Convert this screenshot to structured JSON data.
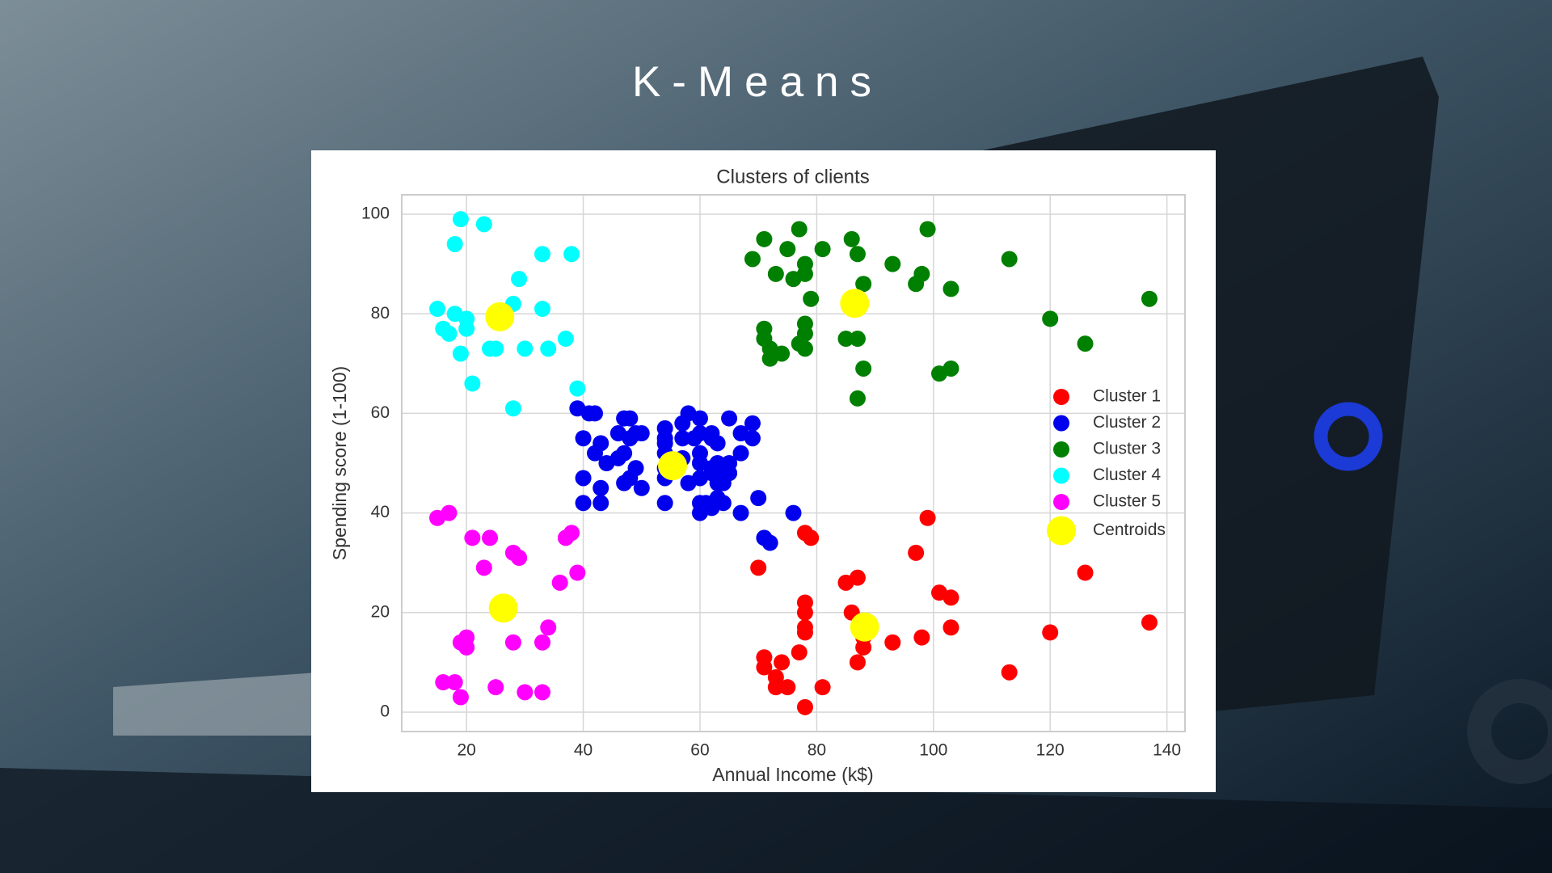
{
  "slide_title": "K-Means",
  "chart_data": {
    "type": "scatter",
    "title": "Clusters of clients",
    "x_label": "Annual Income (k$)",
    "y_label": "Spending score (1-100)",
    "xlim": [
      8.9,
      143.1
    ],
    "ylim": [
      -3.9,
      103.9
    ],
    "xticks": [
      20,
      40,
      60,
      80,
      100,
      120,
      140
    ],
    "yticks": [
      0,
      20,
      40,
      60,
      80,
      100
    ],
    "grid": true,
    "legend": "center right",
    "series": [
      {
        "name": "Cluster 1",
        "color": "#ff0000",
        "x": [
          70,
          78,
          79,
          99,
          97,
          126,
          85,
          87,
          101,
          103,
          137,
          120,
          103,
          98,
          93,
          88,
          87,
          86,
          78,
          78,
          78,
          78,
          77,
          71,
          71,
          73,
          74,
          73,
          75,
          81,
          78,
          113,
          88
        ],
        "values": [
          29,
          36,
          35,
          39,
          32,
          28,
          26,
          27,
          24,
          23,
          18,
          16,
          17,
          15,
          14,
          13,
          10,
          20,
          22,
          20,
          17,
          16,
          12,
          11,
          9,
          7,
          10,
          5,
          5,
          5,
          1,
          8,
          15
        ]
      },
      {
        "name": "Cluster 2",
        "color": "#0000ee",
        "x": [
          39,
          40,
          40,
          40,
          42,
          41,
          42,
          43,
          44,
          43,
          43,
          46,
          46,
          47,
          47,
          47,
          48,
          48,
          48,
          49,
          49,
          50,
          50,
          54,
          54,
          54,
          54,
          54,
          54,
          54,
          57,
          57,
          57,
          58,
          58,
          59,
          60,
          60,
          60,
          60,
          60,
          60,
          60,
          61,
          62,
          62,
          62,
          62,
          62,
          63,
          63,
          63,
          63,
          63,
          64,
          64,
          65,
          65,
          65,
          67,
          67,
          67,
          69,
          69,
          70,
          71,
          72,
          76
        ],
        "values": [
          61,
          55,
          47,
          42,
          60,
          60,
          52,
          54,
          50,
          45,
          42,
          56,
          51,
          59,
          52,
          46,
          47,
          55,
          59,
          56,
          49,
          56,
          45,
          42,
          47,
          49,
          52,
          54,
          55,
          57,
          58,
          55,
          51,
          46,
          60,
          55,
          40,
          42,
          47,
          50,
          52,
          56,
          59,
          42,
          41,
          48,
          49,
          55,
          56,
          43,
          46,
          48,
          50,
          54,
          42,
          46,
          48,
          50,
          59,
          56,
          52,
          40,
          58,
          55,
          43,
          35,
          34,
          40
        ]
      },
      {
        "name": "Cluster 3",
        "color": "#008000",
        "x": [
          69,
          71,
          71,
          71,
          72,
          72,
          73,
          74,
          75,
          76,
          77,
          77,
          78,
          78,
          78,
          78,
          78,
          79,
          81,
          85,
          86,
          87,
          87,
          88,
          88,
          87,
          93,
          97,
          98,
          99,
          101,
          103,
          103,
          113,
          120,
          126,
          137
        ],
        "values": [
          91,
          95,
          77,
          75,
          73,
          71,
          88,
          72,
          93,
          87,
          97,
          74,
          90,
          88,
          78,
          76,
          73,
          83,
          93,
          75,
          95,
          92,
          75,
          86,
          69,
          63,
          90,
          86,
          88,
          97,
          68,
          69,
          85,
          91,
          79,
          74,
          83
        ]
      },
      {
        "name": "Cluster 4",
        "color": "#00ffff",
        "x": [
          15,
          16,
          17,
          18,
          19,
          19,
          20,
          20,
          21,
          23,
          24,
          25,
          28,
          28,
          29,
          30,
          33,
          33,
          34,
          37,
          38,
          39,
          18
        ],
        "values": [
          81,
          77,
          76,
          94,
          99,
          72,
          79,
          77,
          66,
          98,
          73,
          73,
          82,
          61,
          87,
          73,
          92,
          81,
          73,
          75,
          92,
          65,
          80
        ]
      },
      {
        "name": "Cluster 5",
        "color": "#ff00ff",
        "x": [
          15,
          17,
          16,
          18,
          19,
          19,
          20,
          20,
          21,
          23,
          24,
          25,
          28,
          29,
          28,
          30,
          33,
          33,
          34,
          36,
          37,
          38,
          39
        ],
        "values": [
          39,
          40,
          6,
          6,
          3,
          14,
          15,
          13,
          35,
          29,
          35,
          5,
          32,
          31,
          14,
          4,
          4,
          14,
          17,
          26,
          35,
          36,
          28
        ]
      },
      {
        "name": "Centroids",
        "color": "#ffff00",
        "x": [
          55.3,
          86.5,
          25.7,
          26.3,
          88.2
        ],
        "values": [
          49.5,
          82.1,
          79.4,
          20.9,
          17.1
        ]
      }
    ]
  }
}
